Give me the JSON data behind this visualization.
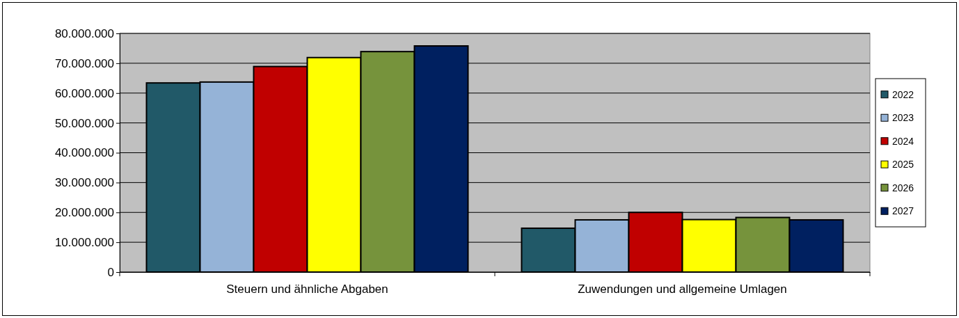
{
  "chart_data": {
    "type": "bar",
    "categories": [
      "Steuern und ähnliche Abgaben",
      "Zuwendungen und allgemeine Umlagen"
    ],
    "series": [
      {
        "name": "2022",
        "color": "#215968",
        "values": [
          63400000,
          14700000
        ]
      },
      {
        "name": "2023",
        "color": "#95b3d7",
        "values": [
          63700000,
          17500000
        ]
      },
      {
        "name": "2024",
        "color": "#c00000",
        "values": [
          68900000,
          20000000
        ]
      },
      {
        "name": "2025",
        "color": "#ffff00",
        "values": [
          71900000,
          17600000
        ]
      },
      {
        "name": "2026",
        "color": "#76933c",
        "values": [
          73900000,
          18300000
        ]
      },
      {
        "name": "2027",
        "color": "#002060",
        "values": [
          75800000,
          17500000
        ]
      }
    ],
    "ylim": [
      0,
      80000000
    ],
    "yticks": [
      0,
      {
        "value": 10000000,
        "label": "10.000.000"
      },
      {
        "value": 20000000,
        "label": "20.000.000"
      },
      {
        "value": 30000000,
        "label": "30.000.000"
      },
      {
        "value": 40000000,
        "label": "40.000.000"
      },
      {
        "value": 50000000,
        "label": "50.000.000"
      },
      {
        "value": 60000000,
        "label": "60.000.000"
      },
      {
        "value": 70000000,
        "label": "70.000.000"
      },
      {
        "value": 80000000,
        "label": "80.000.000"
      }
    ],
    "grid": "y",
    "legend": "right"
  }
}
